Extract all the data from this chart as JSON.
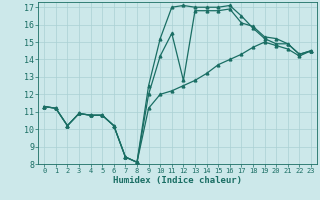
{
  "xlabel": "Humidex (Indice chaleur)",
  "bg_color": "#cce8ea",
  "line_color": "#1a6e64",
  "grid_color": "#aad0d4",
  "xlim": [
    -0.5,
    23.5
  ],
  "ylim": [
    8,
    17.3
  ],
  "xticks": [
    0,
    1,
    2,
    3,
    4,
    5,
    6,
    7,
    8,
    9,
    10,
    11,
    12,
    13,
    14,
    15,
    16,
    17,
    18,
    19,
    20,
    21,
    22,
    23
  ],
  "yticks": [
    8,
    9,
    10,
    11,
    12,
    13,
    14,
    15,
    16,
    17
  ],
  "line1_x": [
    0,
    1,
    2,
    3,
    4,
    5,
    6,
    7,
    8,
    9,
    10,
    11,
    12,
    13,
    14,
    15,
    16,
    17,
    18,
    19,
    20,
    21,
    22,
    23
  ],
  "line1_y": [
    11.3,
    11.2,
    10.2,
    10.9,
    10.8,
    10.8,
    10.2,
    8.4,
    8.1,
    12.5,
    15.2,
    17.0,
    17.1,
    17.0,
    17.0,
    17.0,
    17.1,
    16.5,
    15.8,
    15.2,
    14.9,
    14.9,
    14.3,
    14.5
  ],
  "line2_x": [
    0,
    1,
    2,
    3,
    4,
    5,
    6,
    7,
    8,
    9,
    10,
    11,
    12,
    13,
    14,
    15,
    16,
    17,
    18,
    19,
    20,
    21,
    22,
    23
  ],
  "line2_y": [
    11.3,
    11.2,
    10.2,
    10.9,
    10.8,
    10.8,
    10.2,
    8.4,
    8.1,
    12.0,
    14.2,
    15.5,
    12.8,
    16.8,
    16.8,
    16.8,
    16.9,
    16.1,
    15.9,
    15.3,
    15.2,
    14.9,
    14.3,
    14.5
  ],
  "line3_x": [
    0,
    1,
    2,
    3,
    4,
    5,
    6,
    7,
    8,
    9,
    10,
    11,
    12,
    13,
    14,
    15,
    16,
    17,
    18,
    19,
    20,
    21,
    22,
    23
  ],
  "line3_y": [
    11.3,
    11.2,
    10.2,
    10.9,
    10.8,
    10.8,
    10.2,
    8.4,
    8.1,
    11.2,
    12.0,
    12.2,
    12.5,
    12.8,
    13.2,
    13.7,
    14.0,
    14.3,
    14.7,
    15.0,
    14.8,
    14.6,
    14.2,
    14.5
  ]
}
